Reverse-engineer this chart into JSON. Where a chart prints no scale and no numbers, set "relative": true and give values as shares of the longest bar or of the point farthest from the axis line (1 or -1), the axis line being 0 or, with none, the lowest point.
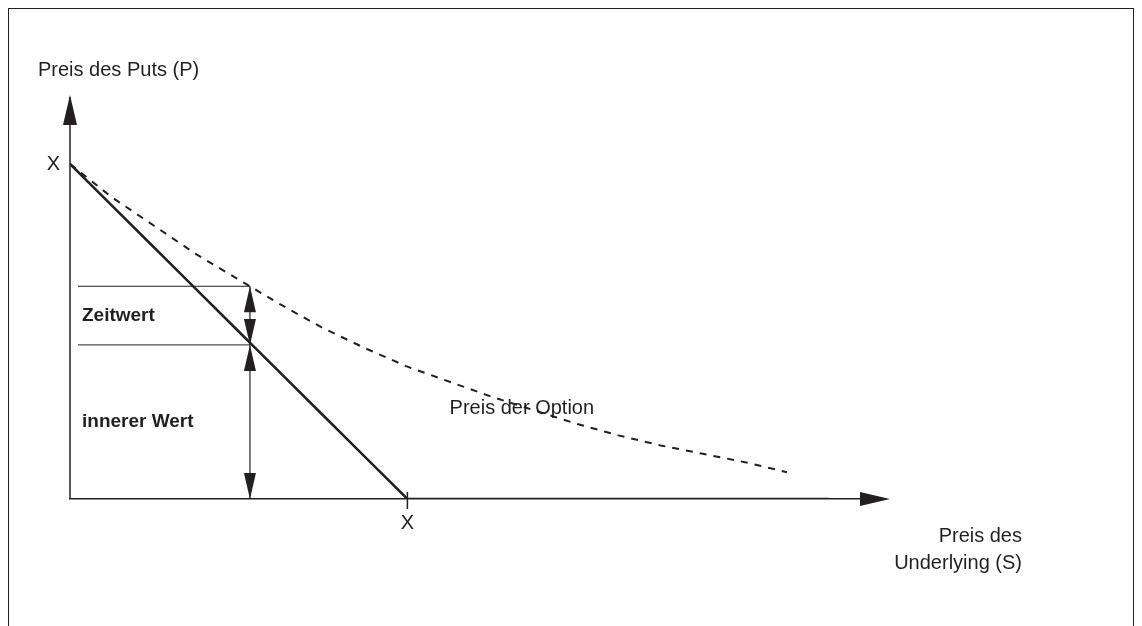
{
  "chart_data": {
    "type": "line",
    "relative": true,
    "xlabel": "Preis des Underlying (S)",
    "ylabel": "Preis des Puts (P)",
    "marker": "none",
    "categories": [
      null,
      null,
      null,
      null,
      null,
      null,
      null,
      null,
      null,
      null,
      null,
      null,
      null,
      null,
      null,
      null,
      null,
      null,
      null
    ],
    "series": [
      {
        "color": "#231f20",
        "line_style": "solid",
        "values": [
          1,
          0.875,
          0.75,
          0.625,
          0.5,
          0.375,
          0.25,
          0.125,
          0,
          0,
          0,
          0,
          0,
          0,
          0,
          0,
          0,
          0,
          0
        ]
      },
      {
        "color": "#231f20",
        "line_style": "dashed",
        "values": [
          1,
          0.9,
          0.815,
          0.73,
          0.655,
          0.58,
          0.51,
          0.45,
          0.395,
          0.35,
          0.305,
          0.265,
          0.225,
          0.19,
          0.16,
          0.135,
          0.11,
          0.08,
          null
        ]
      }
    ],
    "ref_lines": [
      {
        "axis": "y",
        "value": 0.635
      },
      {
        "axis": "y",
        "value": 0.46
      }
    ],
    "annotations": [
      "Zeitwert",
      "innerer Wert",
      {
        "text": "Preis der Option",
        "y": 0.27
      },
      "X",
      {
        "text": "X",
        "y": 0
      }
    ]
  }
}
